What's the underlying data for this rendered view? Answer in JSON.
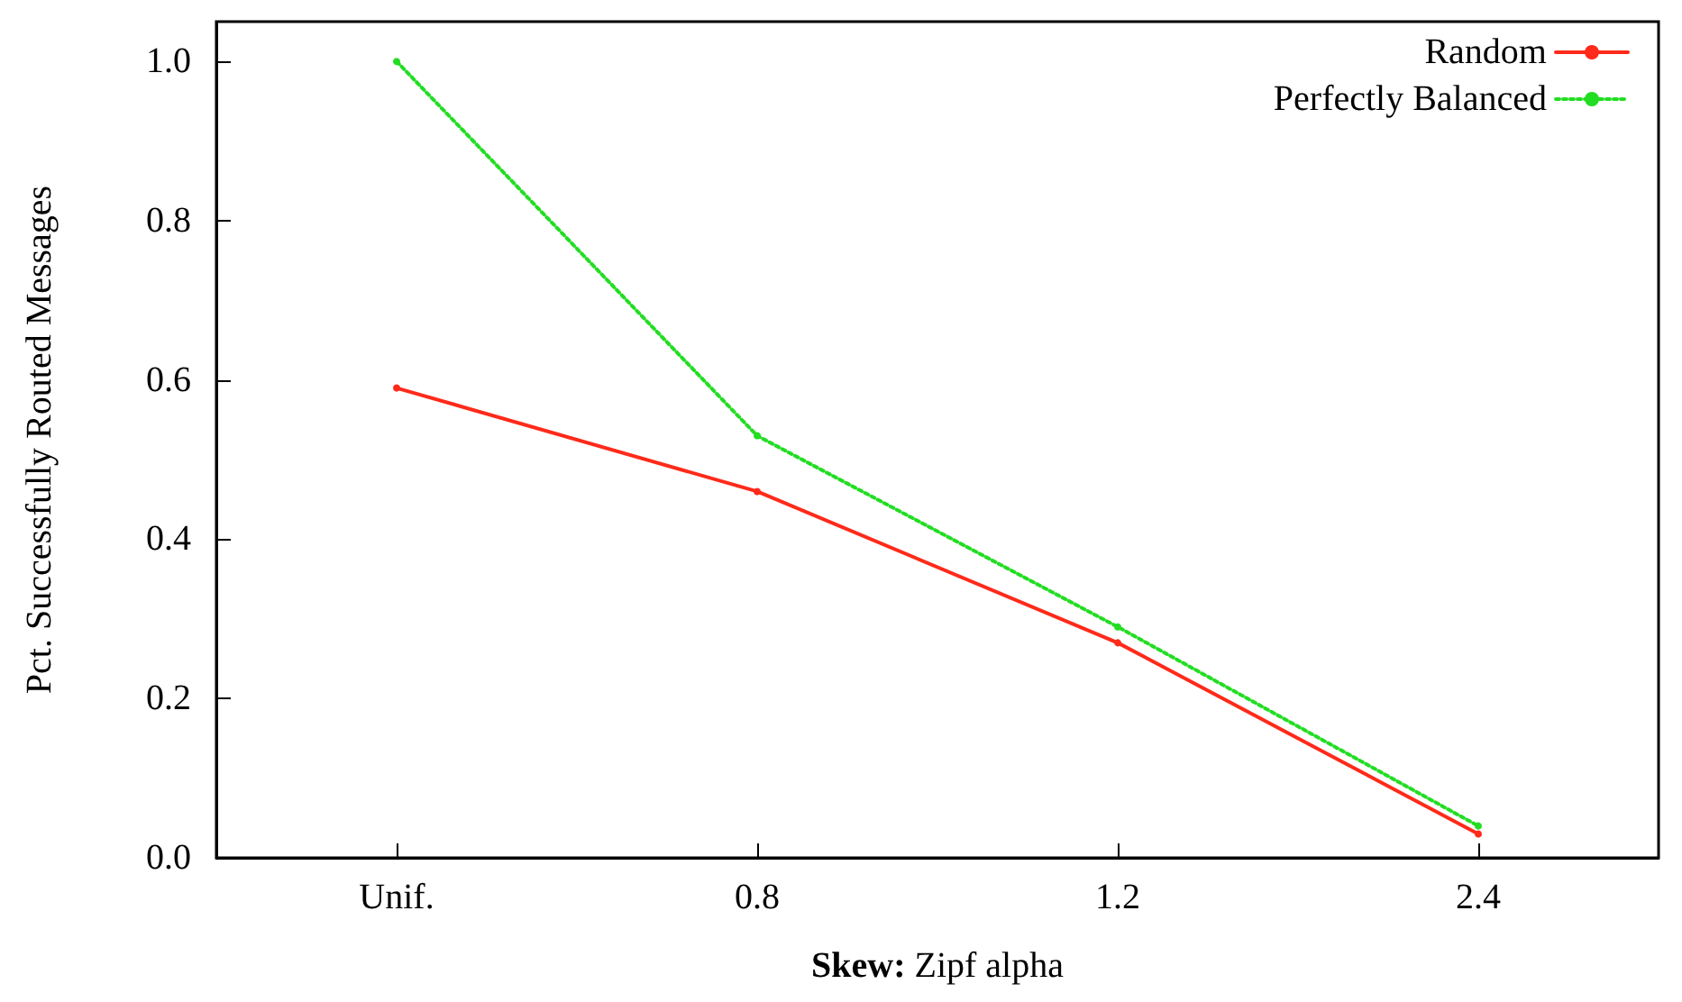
{
  "chart_data": {
    "type": "line",
    "xlabel": "Skew: Zipf alpha",
    "ylabel": "Pct. Successfully Routed Messages",
    "categories": [
      "Unif.",
      "0.8",
      "1.2",
      "2.4"
    ],
    "series": [
      {
        "name": "Random",
        "color": "#ff2a1a",
        "values": [
          0.59,
          0.46,
          0.27,
          0.03
        ],
        "line_style": "solid"
      },
      {
        "name": "Perfectly Balanced",
        "color": "#22dd22",
        "values": [
          1.0,
          0.53,
          0.29,
          0.04
        ],
        "line_style": "dotted"
      }
    ],
    "ylim": [
      0,
      1.05
    ],
    "yticks": [
      {
        "value": 0,
        "label": "0.0"
      },
      {
        "value": 0.2,
        "label": "0.2"
      },
      {
        "value": 0.4,
        "label": "0.4"
      },
      {
        "value": 0.6,
        "label": "0.6"
      },
      {
        "value": 0.8,
        "label": "0.8"
      },
      {
        "value": 1,
        "label": "1.0"
      }
    ],
    "grid": false,
    "legend": "top right",
    "marker": "circle"
  }
}
